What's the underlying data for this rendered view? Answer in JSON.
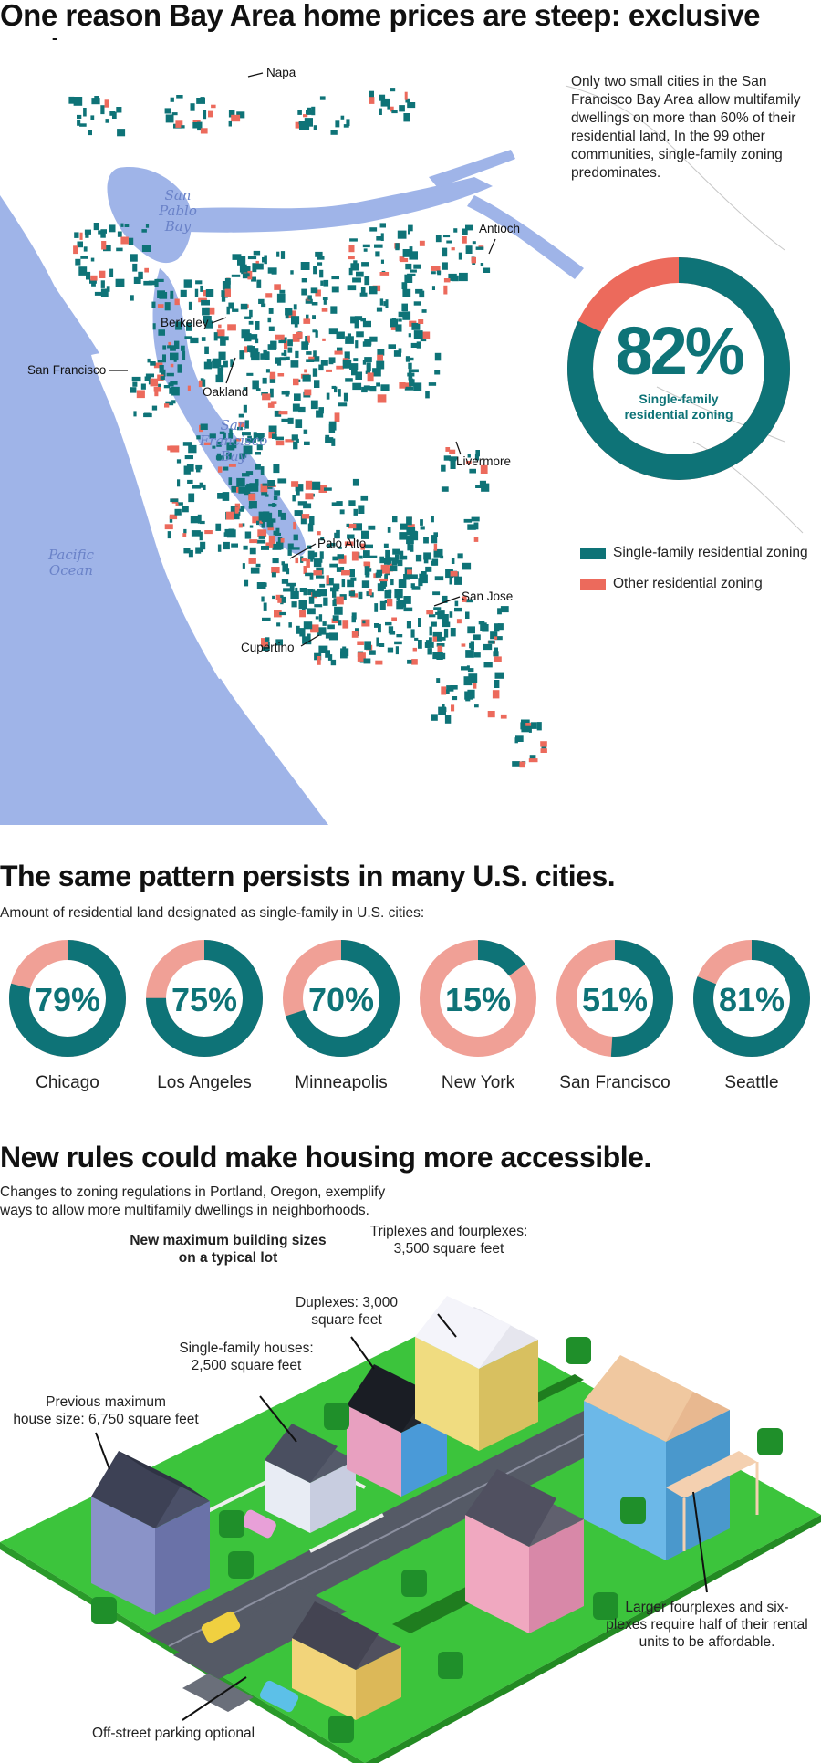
{
  "section1": {
    "title": "One reason Bay Area home prices are steep: exclusive zoning",
    "intro": "Only two small cities in the San Francisco Bay Area allow multifamily dwellings on more than 60% of their residential land. In the 99 other communities, single-family zoning predominates.",
    "big_donut": {
      "value": 82,
      "label": "82%",
      "caption_line1": "Single-family",
      "caption_line2": "residential zoning"
    },
    "legend": [
      {
        "label": "Single-family residential zoning",
        "color": "#0e7377"
      },
      {
        "label": "Other residential zoning",
        "color": "#ec6a5c"
      }
    ],
    "map_labels": {
      "napa": "Napa",
      "antioch": "Antioch",
      "berkeley": "Berkeley",
      "san_francisco": "San Francisco",
      "oakland": "Oakland",
      "livermore": "Livermore",
      "palo_alto": "Palo Alto",
      "san_jose": "San Jose",
      "cupertino": "Cupertino"
    },
    "water_labels": {
      "san_pablo_bay": [
        "San",
        "Pablo",
        "Bay"
      ],
      "sf_bay": [
        "San",
        "Francisco",
        "Bay"
      ],
      "pacific": [
        "Pacific",
        "Ocean"
      ]
    }
  },
  "section2": {
    "title": "The same pattern persists in many U.S. cities.",
    "subtitle": "Amount of residential land designated as single-family in U.S. cities:"
  },
  "chart_data": {
    "type": "pie",
    "title": "The same pattern persists in many U.S. cities.",
    "subtitle": "Amount of residential land designated as single-family in U.S. cities:",
    "categories": [
      "Chicago",
      "Los Angeles",
      "Minneapolis",
      "New York",
      "San Francisco",
      "Seattle"
    ],
    "values": [
      79,
      75,
      70,
      15,
      51,
      81
    ],
    "labels": [
      "79%",
      "75%",
      "70%",
      "15%",
      "51%",
      "81%"
    ],
    "colors": {
      "single_family": "#0e7377",
      "other": "#f0a096"
    }
  },
  "section3": {
    "title": "New rules could make housing more accessible.",
    "subtitle": "Changes to zoning regulations in Portland, Oregon, exemplify ways to allow more multifamily dwellings in neighborhoods.",
    "heading": [
      "New maximum building sizes",
      "on a typical lot"
    ],
    "annotations": {
      "triplex": [
        "Triplexes and fourplexes:",
        "3,500 square feet"
      ],
      "duplex": [
        "Duplexes: 3,000",
        "square feet"
      ],
      "single": [
        "Single-family houses:",
        "2,500 square feet"
      ],
      "previous": [
        "Previous maximum",
        "house size: 6,750 square feet"
      ],
      "sixplex": [
        "Larger fourplexes and six-",
        "plexes require half of their rental",
        "units to be affordable."
      ],
      "parking": "Off-street parking optional"
    }
  },
  "colors": {
    "teal": "#0e7377",
    "coral": "#ec6a5c",
    "water": "#9fb4e8",
    "grass": "#3cc43c"
  }
}
